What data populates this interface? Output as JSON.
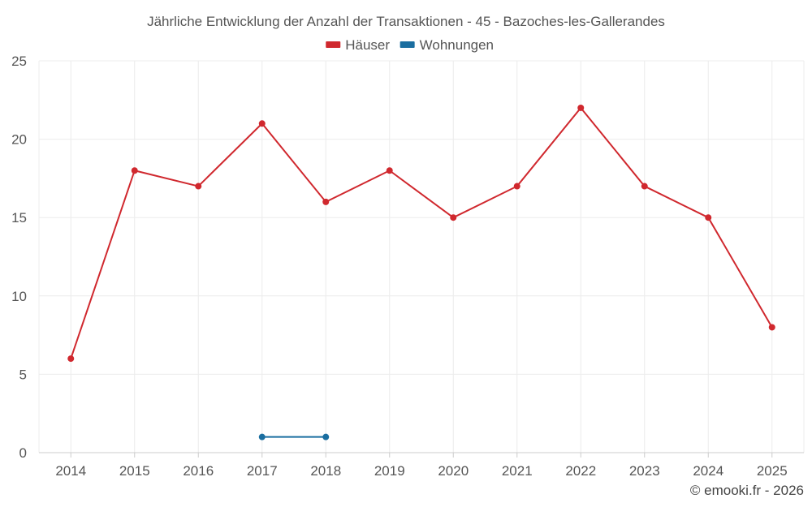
{
  "chart_data": {
    "type": "line",
    "title": "Jährliche Entwicklung der Anzahl der Transaktionen - 45 - Bazoches-les-Gallerandes",
    "categories": [
      "2014",
      "2015",
      "2016",
      "2017",
      "2018",
      "2019",
      "2020",
      "2021",
      "2022",
      "2023",
      "2024",
      "2025"
    ],
    "series": [
      {
        "name": "Häuser",
        "color": "#d0282e",
        "values": [
          6,
          18,
          17,
          21,
          16,
          18,
          15,
          17,
          22,
          17,
          15,
          8
        ]
      },
      {
        "name": "Wohnungen",
        "color": "#1a6ea0",
        "values": [
          null,
          null,
          null,
          1,
          1,
          null,
          null,
          null,
          null,
          null,
          null,
          null
        ]
      }
    ],
    "ylim": [
      0,
      25
    ],
    "yticks": [
      0,
      5,
      10,
      15,
      20,
      25
    ],
    "grid": true,
    "legend_position": "top-center",
    "xlabel": "",
    "ylabel": ""
  },
  "credit": "© emooki.fr - 2026"
}
